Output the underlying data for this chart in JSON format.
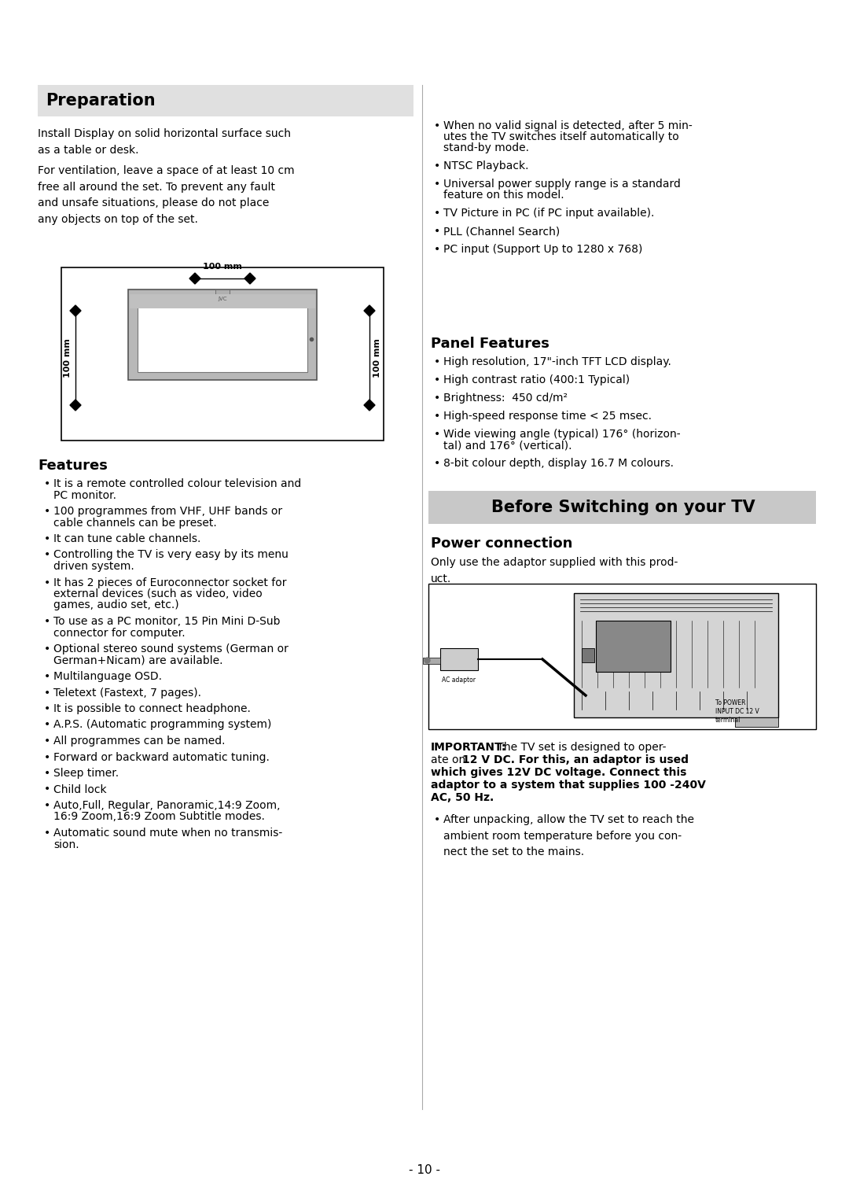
{
  "bg_color": "#ffffff",
  "page_number": "- 10 -",
  "preparation_title": "Preparation",
  "preparation_bg": "#e0e0e0",
  "prep_para1": "Install Display on solid horizontal surface such\nas a table or desk.",
  "prep_para2": "For ventilation, leave a space of at least 10 cm\nfree all around the set. To prevent any fault\nand unsafe situations, please do not place\nany objects on top of the set.",
  "features_title": "Features",
  "features_items": [
    "It is a remote controlled colour television and\nPC monitor.",
    "100 programmes from VHF, UHF bands or\ncable channels can be preset.",
    "It can tune cable channels.",
    "Controlling the TV is very easy by its menu\ndriven system.",
    "It has 2 pieces of Euroconnector socket for\nexternal devices (such as video, video\ngames, audio set, etc.)",
    "To use as a PC monitor, 15 Pin Mini D-Sub\nconnector for computer.",
    "Optional stereo sound systems (German or\nGerman+Nicam) are available.",
    "Multilanguage OSD.",
    "Teletext (Fastext, 7 pages).",
    "It is possible to connect headphone.",
    "A.P.S. (Automatic programming system)",
    "All programmes can be named.",
    "Forward or backward automatic tuning.",
    "Sleep timer.",
    "Child lock",
    "Auto,Full, Regular, Panoramic,14:9 Zoom,\n16:9 Zoom,16:9 Zoom Subtitle modes.",
    "Automatic sound mute when no transmis-\nsion."
  ],
  "right_col_bullets_top": [
    "When no valid signal is detected, after 5 min-\nutes the TV switches itself automatically to\nstand-by mode.",
    "NTSC Playback.",
    "Universal power supply range is a standard\nfeature on this model.",
    "TV Picture in PC (if PC input available).",
    "PLL (Channel Search)",
    "PC input (Support Up to 1280 x 768)"
  ],
  "panel_features_title": "Panel Features",
  "panel_features_items": [
    "High resolution, 17\"-inch TFT LCD display.",
    "High contrast ratio (400:1 Typical)",
    "Brightness:  450 cd/m²",
    "High-speed response time < 25 msec.",
    "Wide viewing angle (typical) 176° (horizon-\ntal) and 176° (vertical).",
    "8-bit colour depth, display 16.7 M colours."
  ],
  "before_switching_title": "Before Switching on your TV",
  "before_switching_bg": "#c8c8c8",
  "power_connection_title": "Power connection",
  "power_connection_text": "Only use the adaptor supplied with this prod-\nuct.",
  "after_unpacking_bullet": "After unpacking, allow the TV set to reach the\nambient room temperature before you con-\nnect the set to the mains."
}
